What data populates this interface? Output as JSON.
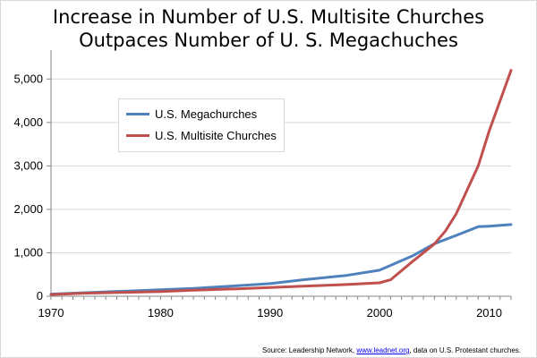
{
  "chart_data": {
    "type": "line",
    "title_lines": [
      "Increase in Number of U.S. Multisite Churches",
      "Outpaces Number of U. S. Megachuches"
    ],
    "xlabel": "",
    "ylabel": "",
    "xlim": [
      1970,
      2012
    ],
    "ylim": [
      0,
      5500
    ],
    "x_ticks": [
      1970,
      1980,
      1990,
      2000,
      2010
    ],
    "x_tick_labels": [
      "1970",
      "1980",
      "1990",
      "2000",
      "2010"
    ],
    "y_ticks": [
      0,
      1000,
      2000,
      3000,
      4000,
      5000
    ],
    "y_tick_labels": [
      "0",
      "1,000",
      "2,000",
      "3,000",
      "4,000",
      "5,000"
    ],
    "grid": "horizontal",
    "legend_position": "upper-left",
    "series": [
      {
        "name": "U.S. Megachurches",
        "color": "#4f81bd",
        "points": [
          [
            1970,
            50
          ],
          [
            1973,
            80
          ],
          [
            1977,
            120
          ],
          [
            1980,
            150
          ],
          [
            1983,
            180
          ],
          [
            1987,
            240
          ],
          [
            1990,
            290
          ],
          [
            1993,
            380
          ],
          [
            1997,
            480
          ],
          [
            2000,
            600
          ],
          [
            2003,
            930
          ],
          [
            2005,
            1210
          ],
          [
            2007,
            1400
          ],
          [
            2009,
            1600
          ],
          [
            2010,
            1610
          ],
          [
            2012,
            1650
          ]
        ]
      },
      {
        "name": "U.S. Multisite Churches",
        "color": "#c0504d",
        "points": [
          [
            1970,
            40
          ],
          [
            1973,
            70
          ],
          [
            1977,
            90
          ],
          [
            1980,
            110
          ],
          [
            1983,
            140
          ],
          [
            1987,
            170
          ],
          [
            1990,
            200
          ],
          [
            1993,
            230
          ],
          [
            1997,
            270
          ],
          [
            2000,
            310
          ],
          [
            2001,
            380
          ],
          [
            2003,
            800
          ],
          [
            2005,
            1200
          ],
          [
            2006,
            1500
          ],
          [
            2007,
            1900
          ],
          [
            2009,
            3000
          ],
          [
            2010,
            3800
          ],
          [
            2011,
            4500
          ],
          [
            2012,
            5200
          ]
        ]
      }
    ]
  },
  "source": {
    "prefix": "Source: Leadership Network, ",
    "link_text": "www.leadnet.org",
    "suffix": ", data on U.S. Protestant churches."
  }
}
